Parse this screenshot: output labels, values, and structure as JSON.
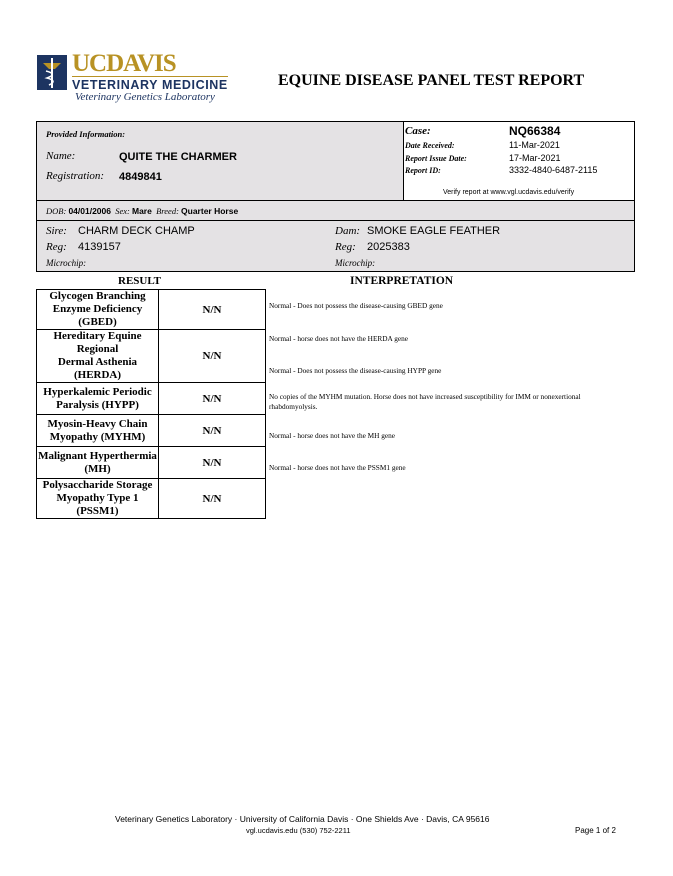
{
  "logo": {
    "line1": "UCDAVIS",
    "line2": "VETERINARY MEDICINE",
    "line3": "Veterinary Genetics Laboratory"
  },
  "title": "EQUINE DISEASE PANEL TEST REPORT",
  "provided": {
    "heading": "Provided Information:",
    "name_label": "Name:",
    "name": "QUITE THE CHARMER",
    "reg_label": "Registration:",
    "registration": "4849841"
  },
  "case": {
    "case_label": "Case:",
    "case": "NQ66384",
    "received_label": "Date Received:",
    "received": "11-Mar-2021",
    "issue_label": "Report Issue Date:",
    "issue": "17-Mar-2021",
    "id_label": "Report ID:",
    "id": "3332-4840-6487-2115",
    "verify": "Verify report at www.vgl.ucdavis.edu/verify"
  },
  "animal": {
    "dob_label": "DOB:",
    "dob": "04/01/2006",
    "sex_label": "Sex:",
    "sex": "Mare",
    "breed_label": "Breed:",
    "breed": "Quarter Horse"
  },
  "sire": {
    "label": "Sire:",
    "name": "CHARM DECK CHAMP",
    "reg_label": "Reg:",
    "reg": "4139157",
    "chip_label": "Microchip:"
  },
  "dam": {
    "label": "Dam:",
    "name": "SMOKE EAGLE FEATHER",
    "reg_label": "Reg:",
    "reg": "2025383",
    "chip_label": "Microchip:"
  },
  "headers": {
    "result": "RESULT",
    "interpretation": "INTERPRETATION"
  },
  "results": [
    {
      "l1": "Glycogen Branching",
      "l2": "Enzyme Deficiency (GBED)",
      "result": "N/N",
      "interp": "Normal - Does not possess the disease-causing GBED gene"
    },
    {
      "l1": "Hereditary Equine Regional",
      "l2": "Dermal Asthenia (HERDA)",
      "result": "N/N",
      "interp": "Normal - horse does not have the HERDA gene"
    },
    {
      "l1": "Hyperkalemic Periodic",
      "l2": "Paralysis (HYPP)",
      "result": "N/N",
      "interp": "Normal - Does not possess the disease-causing HYPP gene"
    },
    {
      "l1": "Myosin-Heavy Chain",
      "l2": "Myopathy (MYHM)",
      "result": "N/N",
      "interp": "No copies of the MYHM mutation. Horse does not have increased susceptibility for IMM or nonexertional rhabdomyolysis."
    },
    {
      "l1": "Malignant Hyperthermia",
      "l2": "(MH)",
      "result": "N/N",
      "interp": "Normal - horse does not have the MH gene"
    },
    {
      "l1": "Polysaccharide Storage",
      "l2": "Myopathy Type 1 (PSSM1)",
      "result": "N/N",
      "interp": "Normal - horse does not have the PSSM1 gene"
    }
  ],
  "footer": {
    "line1": "Veterinary Genetics Laboratory · University of California Davis · One Shields Ave · Davis, CA 95616",
    "line2": "vgl.ucdavis.edu   (530) 752-2211",
    "page": "Page 1 of 2"
  },
  "colors": {
    "navy": "#1d3461",
    "gold": "#b89224",
    "panel": "#e4e2e4"
  }
}
